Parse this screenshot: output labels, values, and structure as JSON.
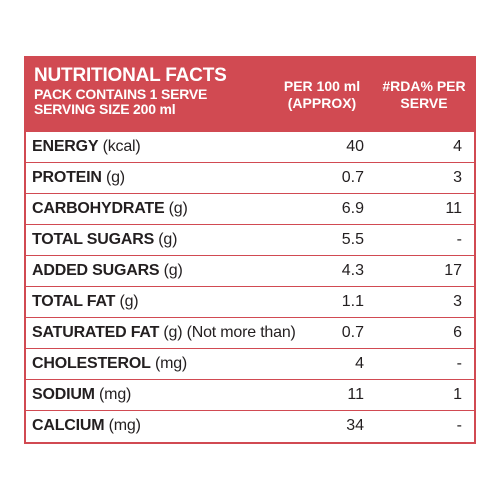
{
  "header": {
    "title": "NUTRITIONAL FACTS",
    "pack": "PACK CONTAINS 1 SERVE",
    "serving": "SERVING SIZE 200 ml",
    "col1_line1": "PER 100 ml",
    "col1_line2": "(APPROX)",
    "col2_line1": "#RDA% PER",
    "col2_line2": "SERVE"
  },
  "rows": [
    {
      "name": "ENERGY",
      "unit": " (kcal)",
      "per100": "40",
      "rda": "4"
    },
    {
      "name": "PROTEIN",
      "unit": " (g)",
      "per100": "0.7",
      "rda": "3"
    },
    {
      "name": "CARBOHYDRATE",
      "unit": " (g)",
      "per100": "6.9",
      "rda": "11"
    },
    {
      "name": "TOTAL SUGARS",
      "unit": " (g)",
      "per100": "5.5",
      "rda": "-"
    },
    {
      "name": "ADDED SUGARS",
      "unit": " (g)",
      "per100": "4.3",
      "rda": "17"
    },
    {
      "name": "TOTAL FAT",
      "unit": " (g)",
      "per100": "1.1",
      "rda": "3"
    },
    {
      "name": "SATURATED FAT",
      "unit": " (g) (Not more than)",
      "per100": "0.7",
      "rda": "6"
    },
    {
      "name": "CHOLESTEROL",
      "unit": " (mg)",
      "per100": "4",
      "rda": "-"
    },
    {
      "name": "SODIUM",
      "unit": " (mg)",
      "per100": "11",
      "rda": "1"
    },
    {
      "name": "CALCIUM",
      "unit": " (mg)",
      "per100": "34",
      "rda": "-"
    }
  ],
  "colors": {
    "accent": "#d14a52",
    "text": "#231f20",
    "background": "#ffffff"
  }
}
